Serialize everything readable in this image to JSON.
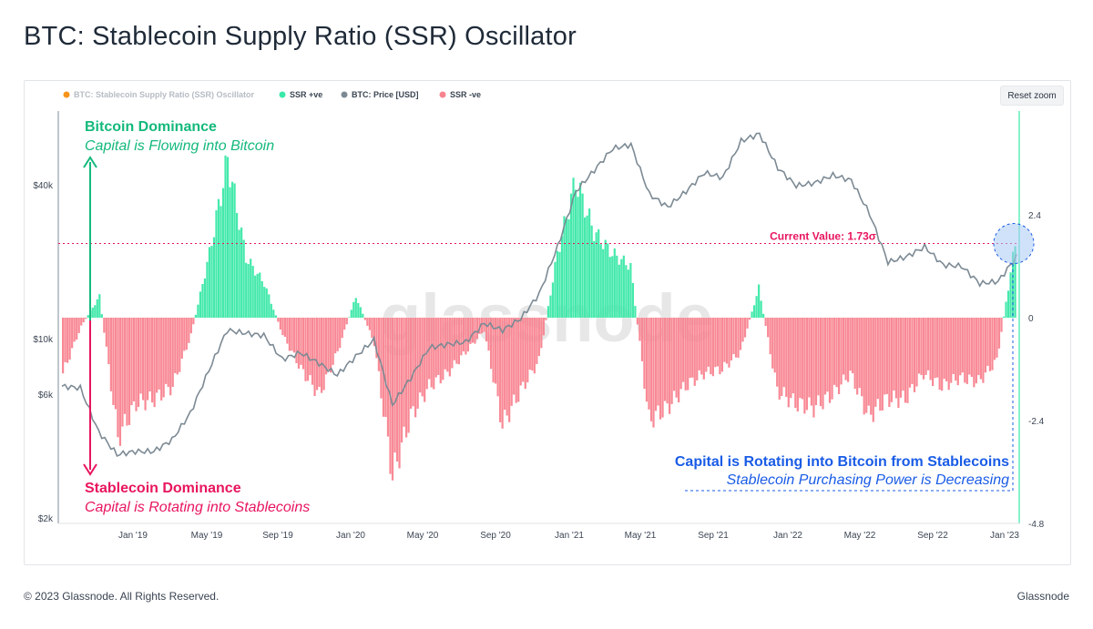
{
  "page": {
    "title": "BTC: Stablecoin Supply Ratio (SSR) Oscillator",
    "footer_left": "© 2023 Glassnode. All Rights Reserved.",
    "footer_right": "Glassnode",
    "reset_zoom": "Reset zoom",
    "watermark": "glassnode"
  },
  "chart_data": {
    "type": "bar",
    "title": "BTC: Stablecoin Supply Ratio (SSR) Oscillator",
    "legend": [
      {
        "name": "BTC: Stablecoin Supply Ratio (SSR) Oscillator",
        "color": "#f7931a",
        "muted": true
      },
      {
        "name": "SSR +ve",
        "color": "#3be8a8"
      },
      {
        "name": "BTC: Price [USD]",
        "color": "#7c8a94"
      },
      {
        "name": "SSR -ve",
        "color": "#f8838f"
      }
    ],
    "legend_position": "top-left",
    "x_ticks": [
      "Jan '19",
      "May '19",
      "Sep '19",
      "Jan '20",
      "May '20",
      "Sep '20",
      "Jan '21",
      "May '21",
      "Sep '21",
      "Jan '22",
      "May '22",
      "Sep '22",
      "Jan '23"
    ],
    "x_range": [
      "Sep '18",
      "Jan '23"
    ],
    "y_left": {
      "ticks": [
        "$40k",
        "$10k",
        "$6k",
        "$2k"
      ],
      "scale": "log",
      "label": "BTC: Price [USD]"
    },
    "y_right": {
      "ticks": [
        "2.4",
        "0",
        "-2.4",
        "-4.8"
      ],
      "range": [
        -4.8,
        4.4
      ],
      "label": ""
    },
    "current_value": 1.73,
    "current_value_label": "Current Value: 1.73σ",
    "ssr_oscillator": {
      "x": [
        "Sep '18",
        "Oct '18",
        "Nov '18",
        "Dec '18",
        "Jan '19",
        "Feb '19",
        "Mar '19",
        "Apr '19",
        "May '19",
        "Jun '19",
        "Jul '19",
        "Aug '19",
        "Sep '19",
        "Oct '19",
        "Nov '19",
        "Dec '19",
        "Jan '20",
        "Feb '20",
        "Mar '20",
        "Apr '20",
        "May '20",
        "Jun '20",
        "Jul '20",
        "Aug '20",
        "Sep '20",
        "Oct '20",
        "Nov '20",
        "Dec '20",
        "Jan '21",
        "Feb '21",
        "Mar '21",
        "Apr '21",
        "May '21",
        "Jun '21",
        "Jul '21",
        "Aug '21",
        "Sep '21",
        "Oct '21",
        "Nov '21",
        "Dec '21",
        "Jan '22",
        "Feb '22",
        "Mar '22",
        "Apr '22",
        "May '22",
        "Jun '22",
        "Jul '22",
        "Aug '22",
        "Sep '22",
        "Oct '22",
        "Nov '22",
        "Dec '22",
        "Jan '23"
      ],
      "values": [
        -1.3,
        -0.2,
        0.5,
        -2.8,
        -2.0,
        -1.9,
        -1.6,
        -0.4,
        1.5,
        3.7,
        1.4,
        0.8,
        -0.4,
        -1.2,
        -1.8,
        -0.8,
        0.5,
        -0.6,
        -3.7,
        -2.3,
        -1.6,
        -1.3,
        -0.8,
        -0.3,
        -2.5,
        -1.7,
        -1.0,
        1.5,
        3.2,
        2.0,
        1.5,
        1.2,
        -2.4,
        -2.1,
        -1.6,
        -1.3,
        -1.2,
        -0.8,
        0.7,
        -1.7,
        -2.0,
        -2.1,
        -1.8,
        -1.3,
        -2.3,
        -1.9,
        -1.9,
        -1.3,
        -1.6,
        -1.4,
        -1.5,
        -1.0,
        1.73
      ]
    },
    "btc_price": {
      "x": [
        "Sep '18",
        "Oct '18",
        "Nov '18",
        "Dec '18",
        "Jan '19",
        "Feb '19",
        "Mar '19",
        "Apr '19",
        "May '19",
        "Jun '19",
        "Jul '19",
        "Aug '19",
        "Sep '19",
        "Oct '19",
        "Nov '19",
        "Dec '19",
        "Jan '20",
        "Feb '20",
        "Mar '20",
        "Apr '20",
        "May '20",
        "Jun '20",
        "Jul '20",
        "Aug '20",
        "Sep '20",
        "Oct '20",
        "Nov '20",
        "Dec '20",
        "Jan '21",
        "Feb '21",
        "Mar '21",
        "Apr '21",
        "May '21",
        "Jun '21",
        "Jul '21",
        "Aug '21",
        "Sep '21",
        "Oct '21",
        "Nov '21",
        "Dec '21",
        "Jan '22",
        "Feb '22",
        "Mar '22",
        "Apr '22",
        "May '22",
        "Jun '22",
        "Jul '22",
        "Aug '22",
        "Sep '22",
        "Oct '22",
        "Nov '22",
        "Dec '22",
        "Jan '23"
      ],
      "values": [
        6500,
        6400,
        4300,
        3500,
        3600,
        3600,
        4000,
        5100,
        7500,
        10800,
        10500,
        10300,
        8300,
        8800,
        8000,
        7200,
        8500,
        9900,
        5500,
        7000,
        9200,
        9500,
        9700,
        11500,
        10800,
        12000,
        15000,
        23000,
        38000,
        46000,
        56000,
        58000,
        37000,
        33000,
        38000,
        45000,
        43000,
        60000,
        64000,
        47000,
        40000,
        41000,
        44000,
        42000,
        31000,
        20000,
        21000,
        23000,
        19500,
        19300,
        16500,
        16800,
        21000
      ]
    },
    "annotations": {
      "top_title": "Bitcoin Dominance",
      "top_subtitle": "Capital is Flowing into Bitcoin",
      "bottom_title": "Stablecoin Dominance",
      "bottom_subtitle": "Capital is Rotating into Stablecoins",
      "right_title": "Capital is Rotating into Bitcoin from Stablecoins",
      "right_subtitle": "Stablecoin Purchasing Power is Decreasing"
    },
    "colors": {
      "positive": "#3be8a8",
      "negative": "#f8838f",
      "price": "#7c8a94",
      "pink": "#e8155e",
      "green_text": "#14b97c",
      "blue_text": "#1a5ce6"
    }
  }
}
